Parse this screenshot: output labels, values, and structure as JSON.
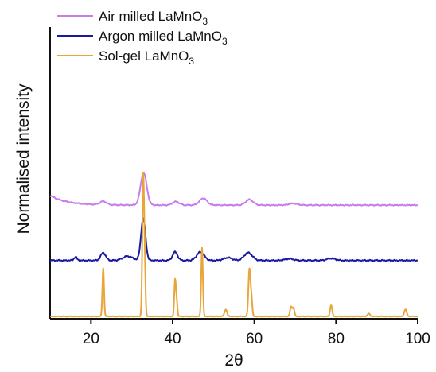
{
  "chart_data": {
    "type": "line",
    "title": "",
    "xlabel": "2θ",
    "ylabel": "Normalised intensity",
    "xlim": [
      10,
      100
    ],
    "xticks": [
      20,
      40,
      60,
      80,
      100
    ],
    "yticks_visible": false,
    "grid": false,
    "legend_position": "top-left",
    "series": [
      {
        "name_main": "Air milled LaMnO",
        "name_sub": "3",
        "color": "#c77dec",
        "offset": 0.755,
        "baseline": 0.04,
        "start_extra": 0.07,
        "noise": 0.004,
        "peaks": [
          [
            23,
            0.025,
            0.8
          ],
          [
            32.9,
            0.23,
            0.75
          ],
          [
            40.8,
            0.025,
            0.8
          ],
          [
            47.5,
            0.05,
            0.9
          ],
          [
            58.8,
            0.04,
            0.9
          ],
          [
            69.5,
            0.012,
            1
          ]
        ]
      },
      {
        "name_main": "Argon milled LaMnO",
        "name_sub": "3",
        "color": "#1a1aa0",
        "offset": 0.4,
        "baseline": 0.0,
        "start_extra": 0.0,
        "noise": 0.005,
        "peaks": [
          [
            16.2,
            0.025,
            0.35
          ],
          [
            23,
            0.055,
            0.6
          ],
          [
            29,
            0.03,
            1.2
          ],
          [
            32.8,
            0.3,
            0.55
          ],
          [
            40.6,
            0.06,
            0.6
          ],
          [
            46.8,
            0.06,
            0.9
          ],
          [
            53.5,
            0.02,
            1
          ],
          [
            58.5,
            0.055,
            1.0
          ],
          [
            68.5,
            0.012,
            1
          ],
          [
            78.8,
            0.015,
            1
          ]
        ]
      },
      {
        "name_main": "Sol-gel LaMnO",
        "name_sub": "3",
        "color": "#e8a53a",
        "offset": 0.0,
        "baseline": 0.0,
        "start_extra": 0.0,
        "noise": 0.002,
        "peaks": [
          [
            23.0,
            0.345,
            0.2
          ],
          [
            32.8,
            1.0,
            0.22
          ],
          [
            33.2,
            0.28,
            0.18
          ],
          [
            40.6,
            0.26,
            0.2
          ],
          [
            41.0,
            0.1,
            0.18
          ],
          [
            47.2,
            0.49,
            0.2
          ],
          [
            53.0,
            0.05,
            0.3
          ],
          [
            58.8,
            0.34,
            0.25
          ],
          [
            59.3,
            0.12,
            0.2
          ],
          [
            69.0,
            0.07,
            0.25
          ],
          [
            69.6,
            0.06,
            0.22
          ],
          [
            78.8,
            0.08,
            0.25
          ],
          [
            88.0,
            0.02,
            0.3
          ],
          [
            97.0,
            0.05,
            0.3
          ]
        ]
      }
    ]
  }
}
